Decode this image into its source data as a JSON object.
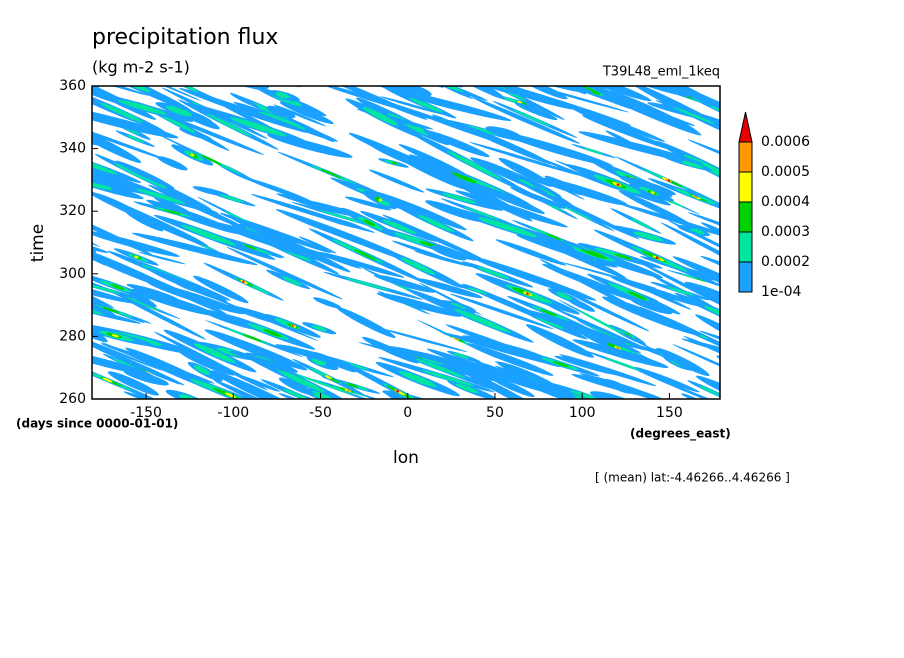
{
  "chart_data": {
    "type": "contour",
    "title": "precipitation flux",
    "subtitle": "(kg m-2 s-1)",
    "run_label": "T39L48_eml_1keq",
    "x_label": "lon",
    "y_label": "time",
    "x_units": "(degrees_east)",
    "y_units": "(days since 0000-01-01)",
    "annotation": "[ (mean) lat:-4.46266..4.46266 ]",
    "xlim": [
      -181,
      179
    ],
    "xticks": [
      -150,
      -100,
      -50,
      0,
      50,
      100,
      150
    ],
    "ylim": [
      260,
      360
    ],
    "yticks": [
      260,
      280,
      300,
      320,
      340,
      360
    ],
    "levels": [
      {
        "value": 0.0001,
        "label": "1e-04"
      },
      0.0002,
      0.0003,
      0.0004,
      0.0005,
      0.0006
    ],
    "level_colors": [
      "#1aa0ff",
      "#00e6a0",
      "#00d200",
      "#ffff00",
      "#ff9900",
      "#e60000"
    ]
  }
}
